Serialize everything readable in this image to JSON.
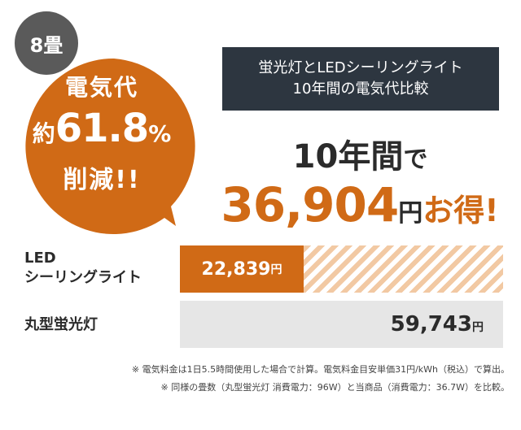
{
  "badge": {
    "text": "8畳",
    "color": "#5a5a5a"
  },
  "bubble": {
    "line1": "電気代",
    "prefix": "約",
    "percent_value": "61.8",
    "percent_sign": "%",
    "line3": "削減!!",
    "color": "#d06a16"
  },
  "title_box": {
    "line1": "蛍光灯とLEDシーリングライト",
    "line2": "10年間の電気代比較"
  },
  "headline": {
    "years": "10年間",
    "years_suffix": "で",
    "amount": "36,904",
    "yen": "円",
    "otoku": "お得!"
  },
  "comparison": {
    "led": {
      "label_line1": "LED",
      "label_line2": "シーリングライト",
      "value": "22,839",
      "unit": "円",
      "ratio": 0.382
    },
    "fluorescent": {
      "label": "丸型蛍光灯",
      "value": "59,743",
      "unit": "円",
      "ratio": 1.0
    }
  },
  "notes": [
    "※ 電気料金は1日5.5時間使用した場合で計算。電気料金目安単価31円/kWh（税込）で算出。",
    "※ 同様の畳数（丸型蛍光灯 消費電力：96W）と当商品（消費電力：36.7W）を比較。"
  ],
  "colors": {
    "accent": "#d06a16",
    "dark": "#2d3640",
    "gray_bar": "#e6e6e6"
  }
}
